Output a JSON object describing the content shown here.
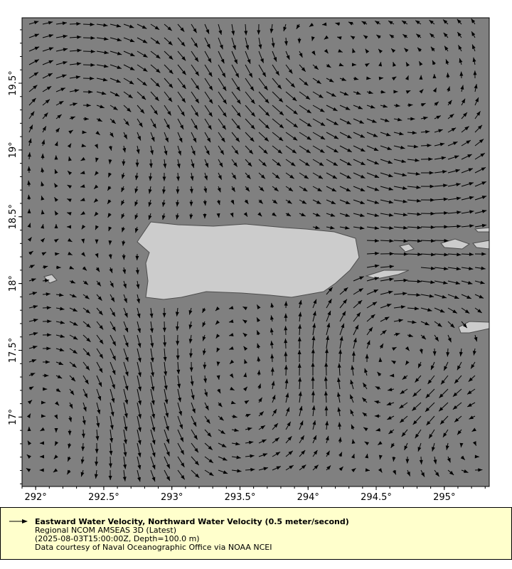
{
  "map": {
    "lon_ticks": [
      "292°",
      "292.5°",
      "293°",
      "293.5°",
      "294°",
      "294.5°",
      "295°"
    ],
    "lat_ticks": [
      "19.5°",
      "19°",
      "18.5°",
      "18°",
      "17.5°",
      "17°"
    ],
    "lon_range": [
      291.9,
      295.33
    ],
    "lat_range": [
      16.48,
      19.99
    ],
    "colors": {
      "ocean": "#808080",
      "land": "#cccccc",
      "vectors": "#000000",
      "legend_bg": "#ffffcc"
    },
    "vector_scale_label": "0.5 meter/second"
  },
  "legend": {
    "title": "Eastward Water Velocity, Northward Water Velocity (0.5 meter/second)",
    "dataset": "Regional NCOM AMSEAS 3D (Latest)",
    "time_depth": "(2025-08-03T15:00:00Z, Depth=100.0 m)",
    "credit": "Data courtesy of Naval Oceanographic Office via NOAA NCEI"
  }
}
